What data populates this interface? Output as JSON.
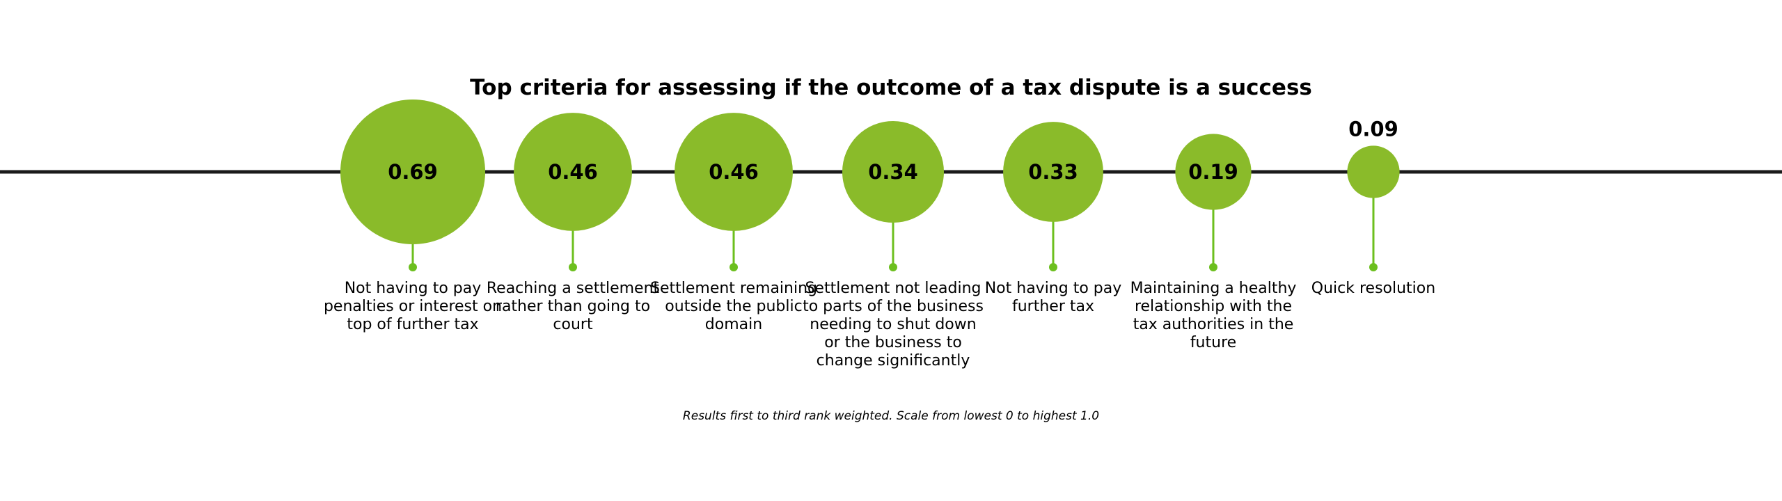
{
  "chart_data": {
    "type": "bubble",
    "title": "Top criteria for assessing if the outcome of a tax dispute is a success",
    "categories": [
      "Not having to pay penalties or interest on top of further tax",
      "Reaching a settlement rather than going to court",
      "Settlement remaining outside the public domain",
      "Settlement not leading to parts of the business needing to shut down or the business to change significantly",
      "Not having to pay further tax",
      "Maintaining a healthy relationship with the tax authorities in the future",
      "Quick resolution"
    ],
    "values": [
      0.69,
      0.46,
      0.46,
      0.34,
      0.33,
      0.19,
      0.09
    ],
    "value_labels": [
      "0.69",
      "0.46",
      "0.46",
      "0.34",
      "0.33",
      "0.19",
      "0.09"
    ],
    "scale": [
      0,
      1.0
    ],
    "footnote": "Results first to third rank weighted. Scale from lowest 0 to highest 1.0",
    "colors": {
      "bubble": "#8ABB2A",
      "stem": "#6CBF1E",
      "line": "#1a1a1a",
      "text": "#000000"
    }
  }
}
